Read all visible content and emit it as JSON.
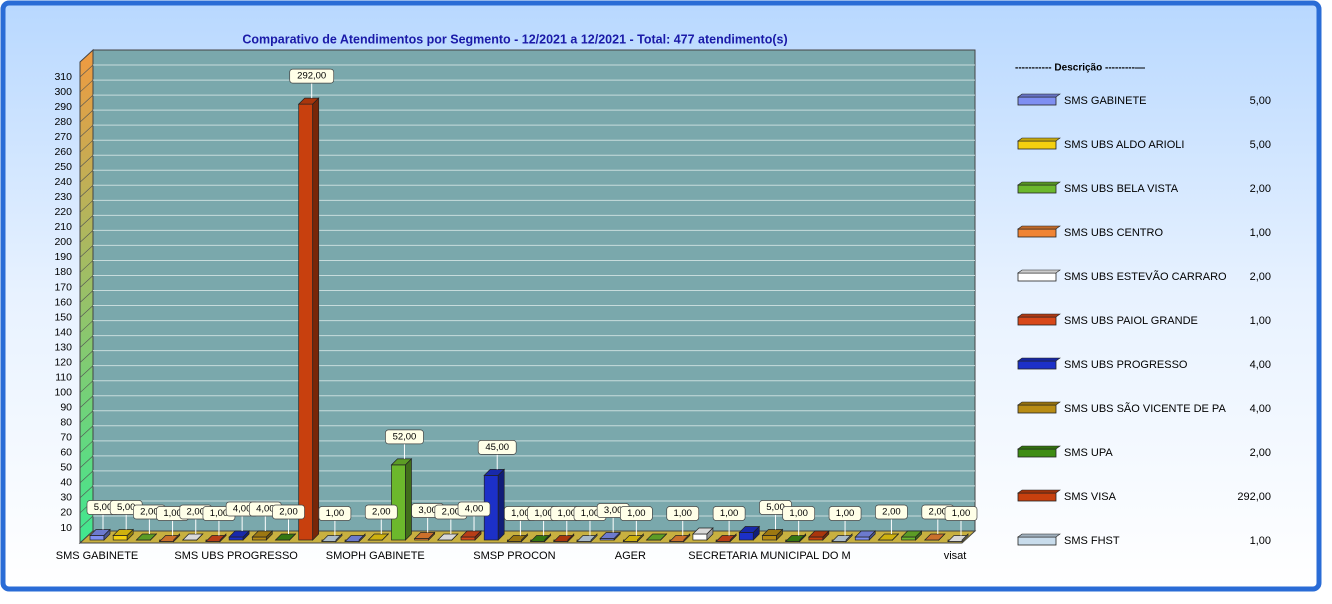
{
  "chart_data": {
    "type": "bar3d",
    "title": "Comparativo de Atendimentos por Segmento - 12/2021 a 12/2021 - Total: 477 atendimento(s)",
    "legend_title": "----------- Descrição ---------—",
    "categories": [
      "SMS GABINETE",
      "SMS UBS ALDO ARIOLI",
      "SMS UBS BELA VISTA",
      "SMS UBS CENTRO",
      "SMS UBS ESTEVÃO CARRARO",
      "SMS UBS PAIOL GRANDE",
      "SMS UBS PROGRESSO",
      "SMS UBS SÃO VICENTE DE PA",
      "SMS UPA",
      "SMS VISA",
      "SMS FHST",
      null,
      "SMOPH GABINETE",
      null,
      null,
      null,
      null,
      null,
      "SMSP PROCON",
      null,
      null,
      null,
      null,
      "AGER",
      null,
      null,
      null,
      null,
      null,
      "SECRETARIA MUNICIPAL DO M",
      null,
      null,
      null,
      null,
      null,
      null,
      null,
      "visat"
    ],
    "labeled_categories": [
      0,
      6,
      12,
      18,
      23,
      29,
      37
    ],
    "legend_count": 11,
    "values": [
      5,
      5,
      2,
      1,
      2,
      1,
      4,
      4,
      2,
      292,
      1,
      1,
      2,
      52,
      3,
      2,
      4,
      45,
      1,
      1,
      1,
      1,
      3,
      1,
      2,
      1,
      6,
      1,
      7,
      5,
      1,
      4,
      1,
      4,
      2,
      4,
      2,
      1
    ],
    "value_labels": [
      "5,00",
      "5,00",
      "2,00",
      "1,00",
      "2,00",
      "1,00",
      "4,00",
      "4,00",
      "2,00",
      "292,00",
      "1,00",
      null,
      "2,00",
      "52,00",
      "3,00",
      "2,00",
      "4,00",
      "45,00",
      "1,00",
      "1,00",
      "1,00",
      "1,00",
      "3,00",
      "1,00",
      null,
      "1,00",
      null,
      "1,00",
      null,
      "5,00",
      "1,00",
      null,
      "1,00",
      null,
      "2,00",
      null,
      "2,00",
      "1,00"
    ],
    "colors": [
      "#7f8ff2",
      "#f4d010",
      "#6cb82c",
      "#f08434",
      "#ffffff",
      "#d8481a",
      "#1c30c8",
      "#b88c14",
      "#3e8c14",
      "#c8400e",
      "#c8dcec"
    ],
    "ylim": [
      0,
      320
    ],
    "yticks": [
      10,
      20,
      30,
      40,
      50,
      60,
      70,
      80,
      90,
      100,
      110,
      120,
      130,
      140,
      150,
      160,
      170,
      180,
      190,
      200,
      210,
      220,
      230,
      240,
      250,
      260,
      270,
      280,
      290,
      300,
      310
    ],
    "grid": true
  }
}
